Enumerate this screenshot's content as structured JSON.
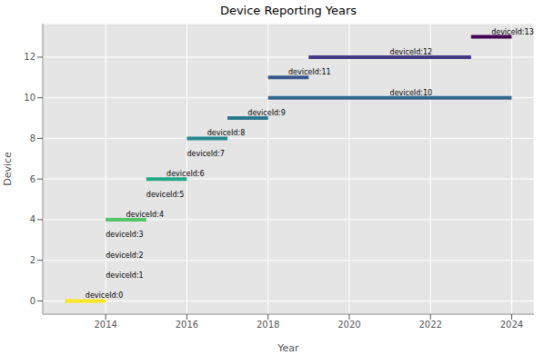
{
  "chart_data": {
    "type": "range_bar",
    "orientation": "horizontal",
    "title": "Device Reporting Years",
    "x_label": "Year",
    "y_label": "Device",
    "categories": [
      "deviceId:0",
      "deviceId:1",
      "deviceId:2",
      "deviceId:3",
      "deviceId:4",
      "deviceId:5",
      "deviceId:6",
      "deviceId:7",
      "deviceId:8",
      "deviceId:9",
      "deviceId:10",
      "deviceId:11",
      "deviceId:12",
      "deviceId:13"
    ],
    "y": [
      0,
      1,
      2,
      3,
      4,
      5,
      6,
      7,
      8,
      9,
      10,
      11,
      12,
      13
    ],
    "start": [
      2013,
      2014,
      2014,
      2014,
      2014,
      2015,
      2015,
      2016,
      2016,
      2017,
      2018,
      2018,
      2019,
      2023
    ],
    "end": [
      2014,
      2014,
      2014,
      2014,
      2015,
      2015,
      2016,
      2016,
      2017,
      2018,
      2024,
      2019,
      2023,
      2024
    ],
    "colors": [
      "#fde725",
      "#d2e21b",
      "#a5db36",
      "#7ad151",
      "#54c568",
      "#35b779",
      "#22a884",
      "#1f988b",
      "#23888e",
      "#2a788e",
      "#31688e",
      "#39568c",
      "#443983",
      "#440154"
    ],
    "xlim": [
      2012.45,
      2024.55
    ],
    "xticks": [
      2014,
      2016,
      2018,
      2020,
      2022,
      2024
    ],
    "ylim": [
      -0.65,
      13.65
    ],
    "yticks": [
      0,
      2,
      4,
      6,
      8,
      10,
      12
    ],
    "grid": true
  }
}
